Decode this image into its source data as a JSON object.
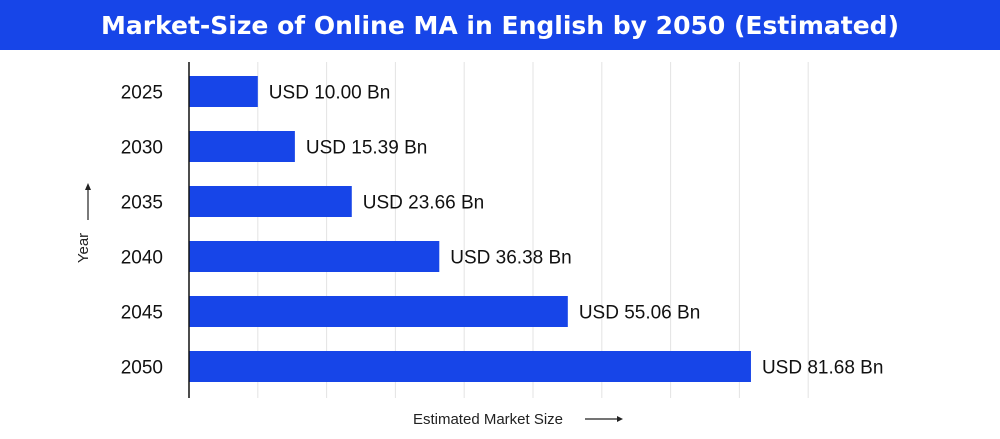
{
  "chart_data": {
    "type": "bar",
    "orientation": "horizontal",
    "title": "Market-Size of Online MA in English by 2050 (Estimated)",
    "xlabel": "Estimated Market Size",
    "ylabel": "Year",
    "categories": [
      "2025",
      "2030",
      "2035",
      "2040",
      "2045",
      "2050"
    ],
    "values": [
      10.0,
      15.39,
      23.66,
      36.38,
      55.06,
      81.68
    ],
    "value_labels": [
      "USD 10.00 Bn",
      "USD 15.39 Bn",
      "USD 23.66 Bn",
      "USD 36.38 Bn",
      "USD 55.06 Bn",
      "USD 81.68 Bn"
    ],
    "xlim": [
      0,
      90
    ],
    "grid": "vertical",
    "colors": {
      "bar": "#1745E8",
      "title_bg": "#1745E8",
      "grid": "#e3e3e3",
      "axis": "#111111"
    }
  }
}
